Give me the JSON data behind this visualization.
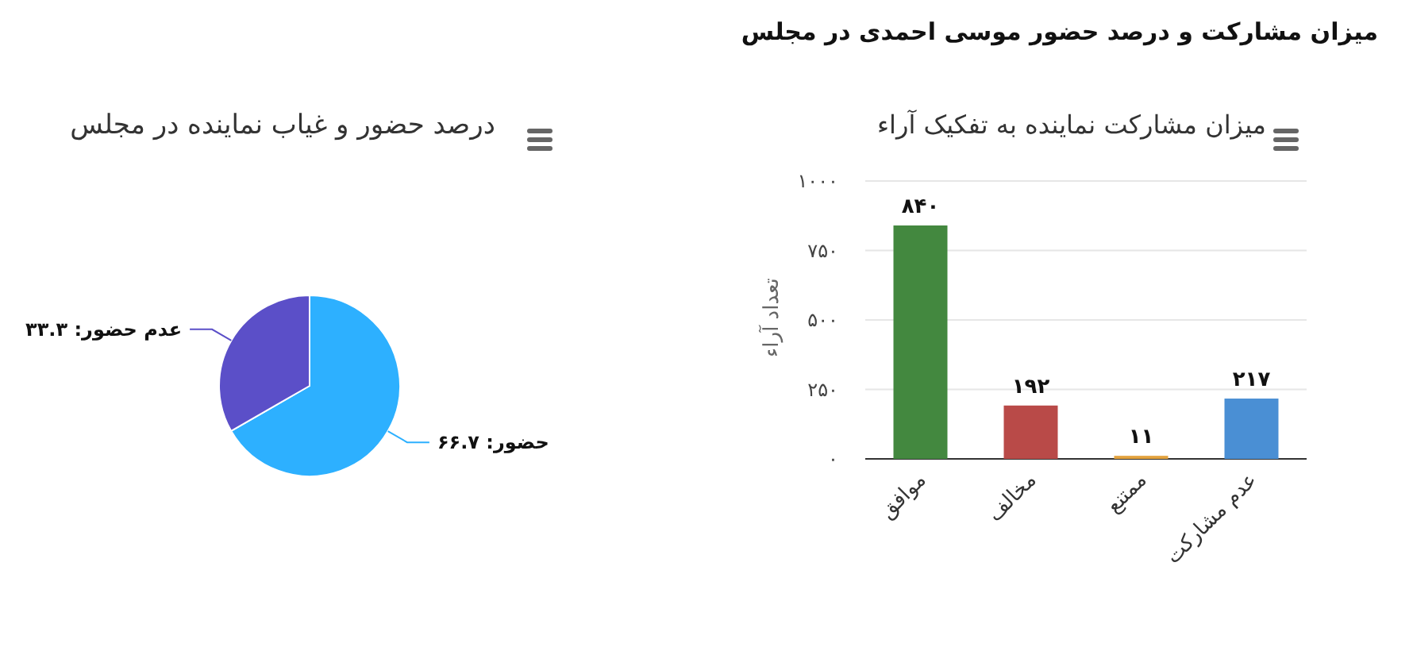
{
  "chart_data": [
    {
      "type": "other",
      "title": "میزان مشارکت و درصد حضور موسی احمدی در مجلس"
    },
    {
      "type": "bar",
      "title": "میزان مشارکت نماینده به تفکیک آراء",
      "ylabel": "تعداد آراء",
      "categories": [
        "موافق",
        "مخالف",
        "ممتنع",
        "عدم مشارکت"
      ],
      "values": [
        840,
        192,
        11,
        217
      ],
      "colors": [
        "#43883f",
        "#b94a48",
        "#e3a33e",
        "#4a8fd4"
      ],
      "value_labels": [
        "۸۴۰",
        "۱۹۲",
        "۱۱",
        "۲۱۷"
      ],
      "ylim": [
        0,
        1000
      ],
      "yticks": [
        {
          "value": 0,
          "label": "۰"
        },
        {
          "value": 250,
          "label": "۲۵۰"
        },
        {
          "value": 500,
          "label": "۵۰۰"
        },
        {
          "value": 750,
          "label": "۷۵۰"
        },
        {
          "value": 1000,
          "label": "۱۰۰۰"
        }
      ],
      "grid": "y"
    },
    {
      "type": "pie",
      "title": "درصد حضور و غیاب نماینده در مجلس",
      "categories": [
        "حضور",
        "عدم حضور"
      ],
      "values": [
        66.7,
        33.3
      ],
      "colors": [
        "#2db0ff",
        "#5b4fc8"
      ],
      "value_labels": [
        "۶۶.۷",
        "۳۳.۳"
      ]
    }
  ]
}
